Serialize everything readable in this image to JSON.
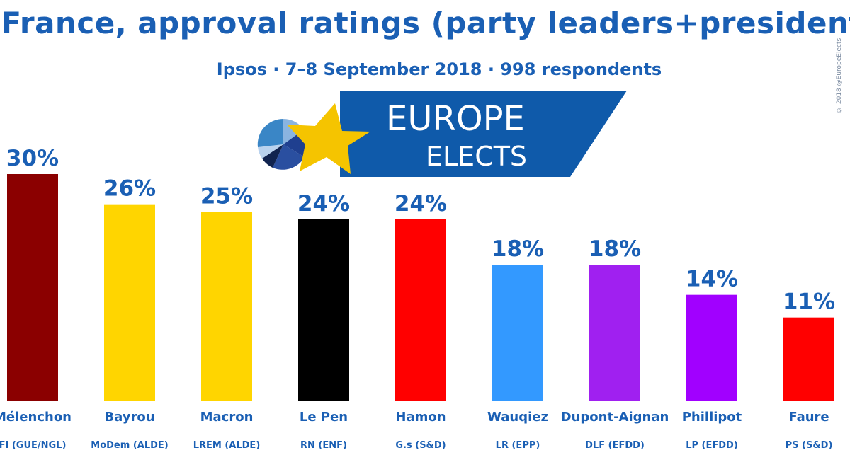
{
  "header": {
    "title": "France, approval ratings (party leaders+president)",
    "subtitle": "Ipsos · 7–8 September 2018 · 998 respondents",
    "copyright": "© 2018 @EuropeElects"
  },
  "logo": {
    "line1": "EUROPE",
    "line2": "ELECTS",
    "banner_color": "#0f5aaa",
    "star_color": "#f5c400"
  },
  "chart_data": {
    "type": "bar",
    "title": "France, approval ratings (party leaders+president)",
    "xlabel": "",
    "ylabel": "",
    "ylim": [
      0,
      30
    ],
    "value_suffix": "%",
    "categories": [
      "Mélenchon",
      "Bayrou",
      "Macron",
      "Le Pen",
      "Hamon",
      "Wauqiez",
      "Dupont-Aignan",
      "Phillipot",
      "Faure"
    ],
    "parties": [
      "FI (GUE/NGL)",
      "MoDem (ALDE)",
      "LREM (ALDE)",
      "RN (ENF)",
      "G.s (S&D)",
      "LR (EPP)",
      "DLF (EFDD)",
      "LP (EFDD)",
      "PS (S&D)"
    ],
    "values": [
      30,
      26,
      25,
      24,
      24,
      18,
      18,
      14,
      11
    ],
    "value_labels": [
      "30%",
      "26%",
      "25%",
      "24%",
      "24%",
      "18%",
      "18%",
      "14%",
      "11%"
    ],
    "colors": [
      "#8b0000",
      "#ffd500",
      "#ffd500",
      "#000000",
      "#ff0000",
      "#3399ff",
      "#a020f0",
      "#a100ff",
      "#ff0000"
    ]
  }
}
